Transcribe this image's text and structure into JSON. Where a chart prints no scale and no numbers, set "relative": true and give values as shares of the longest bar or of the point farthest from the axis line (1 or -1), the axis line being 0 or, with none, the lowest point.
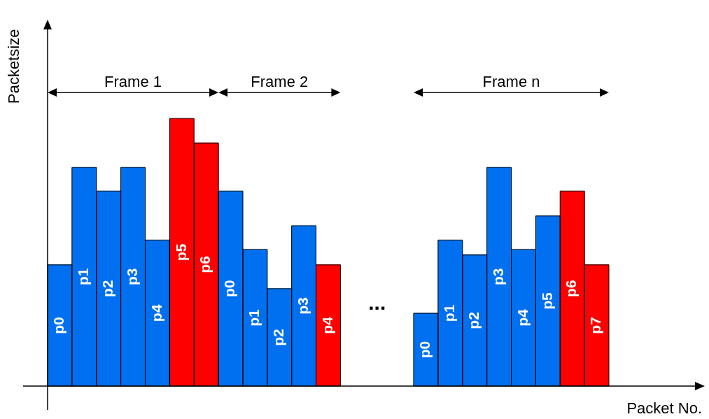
{
  "chart_data": {
    "type": "bar",
    "relative": true,
    "xlabel": "Packet No.",
    "ylabel": "Packetsize",
    "categories": [
      "p0",
      "p1",
      "p2",
      "p3",
      "p4",
      "p5",
      "p6",
      "p0",
      "p1",
      "p2",
      "p3",
      "p4",
      null,
      null,
      null,
      "p0",
      "p1",
      "p2",
      "p3",
      "p4",
      "p5",
      "p6",
      "p7"
    ],
    "values": [
      0.453,
      0.817,
      0.728,
      0.817,
      0.545,
      1,
      0.908,
      0.728,
      0.51,
      0.364,
      0.599,
      0.453,
      null,
      null,
      null,
      0.272,
      0.545,
      0.49,
      0.817,
      0.51,
      0.636,
      0.728,
      0.453
    ],
    "colors": [
      "#0070f0",
      "#0070f0",
      "#0070f0",
      "#0070f0",
      "#0070f0",
      "#ff0000",
      "#ff0000",
      "#0070f0",
      "#0070f0",
      "#0070f0",
      "#0070f0",
      "#ff0000",
      "#0070f0",
      "#0070f0",
      "#0070f0",
      "#0070f0",
      "#0070f0",
      "#0070f0",
      "#0070f0",
      "#0070f0",
      "#0070f0",
      "#ff0000",
      "#ff0000"
    ],
    "annotations": [
      "Frame 1",
      "Frame 2",
      "...",
      "Frame n"
    ],
    "grid": false,
    "legend": false
  }
}
